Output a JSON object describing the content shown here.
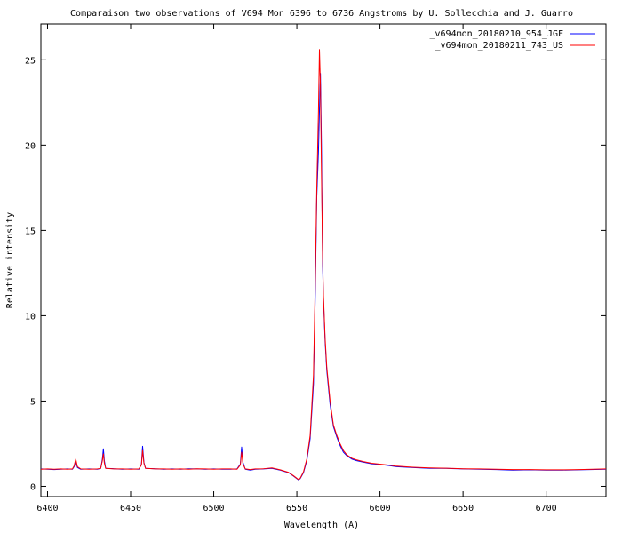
{
  "chart_data": {
    "type": "line",
    "title": "Comparaison two observations of V694 Mon 6396 to 6736 Angstroms by U. Sollecchia and J. Guarro",
    "xlabel": "Wavelength (A)",
    "ylabel": "Relative intensity",
    "xlim": [
      6396,
      6736
    ],
    "ylim": [
      -0.6,
      27.1
    ],
    "x_ticks": [
      6400,
      6450,
      6500,
      6550,
      6600,
      6650,
      6700
    ],
    "y_ticks": [
      0,
      5,
      10,
      15,
      20,
      25
    ],
    "grid": false,
    "legend_position": "top-right",
    "series": [
      {
        "name": "_v694mon_20180210_954_JGF",
        "color": "#0000ff",
        "points": [
          [
            6396,
            1.02
          ],
          [
            6400,
            1.0
          ],
          [
            6404,
            0.98
          ],
          [
            6408,
            1.0
          ],
          [
            6412,
            1.02
          ],
          [
            6415,
            1.0
          ],
          [
            6416,
            1.15
          ],
          [
            6417,
            1.45
          ],
          [
            6418,
            1.1
          ],
          [
            6420,
            1.0
          ],
          [
            6425,
            1.02
          ],
          [
            6430,
            1.0
          ],
          [
            6432,
            1.05
          ],
          [
            6433,
            1.6
          ],
          [
            6433.6,
            2.2
          ],
          [
            6434.2,
            1.5
          ],
          [
            6435,
            1.05
          ],
          [
            6440,
            1.03
          ],
          [
            6445,
            1.0
          ],
          [
            6450,
            1.02
          ],
          [
            6455,
            1.0
          ],
          [
            6456.5,
            1.3
          ],
          [
            6457.2,
            2.35
          ],
          [
            6458,
            1.4
          ],
          [
            6459,
            1.05
          ],
          [
            6465,
            1.03
          ],
          [
            6470,
            1.0
          ],
          [
            6475,
            1.02
          ],
          [
            6480,
            1.0
          ],
          [
            6485,
            1.03
          ],
          [
            6490,
            1.02
          ],
          [
            6495,
            1.0
          ],
          [
            6500,
            1.02
          ],
          [
            6505,
            1.0
          ],
          [
            6510,
            1.0
          ],
          [
            6514,
            1.02
          ],
          [
            6516,
            1.3
          ],
          [
            6516.8,
            2.3
          ],
          [
            6517.6,
            1.4
          ],
          [
            6519,
            1.0
          ],
          [
            6522,
            0.95
          ],
          [
            6525,
            1.0
          ],
          [
            6530,
            1.02
          ],
          [
            6535,
            1.05
          ],
          [
            6540,
            0.95
          ],
          [
            6545,
            0.8
          ],
          [
            6548,
            0.6
          ],
          [
            6550,
            0.45
          ],
          [
            6551,
            0.38
          ],
          [
            6552,
            0.45
          ],
          [
            6554,
            0.8
          ],
          [
            6556,
            1.5
          ],
          [
            6558,
            2.8
          ],
          [
            6560,
            6.0
          ],
          [
            6561,
            10.8
          ],
          [
            6562,
            17.0
          ],
          [
            6563,
            19.6
          ],
          [
            6563.6,
            22.0
          ],
          [
            6564.2,
            24.2
          ],
          [
            6564.8,
            20.0
          ],
          [
            6565.5,
            13.0
          ],
          [
            6566,
            11.0
          ],
          [
            6567,
            8.5
          ],
          [
            6568,
            6.8
          ],
          [
            6570,
            4.8
          ],
          [
            6572,
            3.5
          ],
          [
            6574,
            2.9
          ],
          [
            6576,
            2.4
          ],
          [
            6578,
            2.0
          ],
          [
            6580,
            1.8
          ],
          [
            6583,
            1.6
          ],
          [
            6586,
            1.5
          ],
          [
            6590,
            1.42
          ],
          [
            6595,
            1.32
          ],
          [
            6600,
            1.28
          ],
          [
            6605,
            1.22
          ],
          [
            6610,
            1.15
          ],
          [
            6620,
            1.1
          ],
          [
            6630,
            1.05
          ],
          [
            6640,
            1.05
          ],
          [
            6650,
            1.02
          ],
          [
            6660,
            1.0
          ],
          [
            6670,
            0.98
          ],
          [
            6680,
            0.95
          ],
          [
            6690,
            0.97
          ],
          [
            6700,
            0.95
          ],
          [
            6710,
            0.95
          ],
          [
            6720,
            0.97
          ],
          [
            6736,
            1.0
          ]
        ]
      },
      {
        "name": "_v694mon_20180211_743_US",
        "color": "#ff0000",
        "points": [
          [
            6396,
            1.0
          ],
          [
            6400,
            1.02
          ],
          [
            6404,
            1.0
          ],
          [
            6408,
            1.02
          ],
          [
            6412,
            1.0
          ],
          [
            6415,
            1.02
          ],
          [
            6416,
            1.2
          ],
          [
            6417,
            1.6
          ],
          [
            6418,
            1.15
          ],
          [
            6420,
            1.02
          ],
          [
            6425,
            1.0
          ],
          [
            6430,
            1.02
          ],
          [
            6432,
            1.05
          ],
          [
            6433,
            1.5
          ],
          [
            6433.6,
            1.9
          ],
          [
            6434.2,
            1.35
          ],
          [
            6435,
            1.05
          ],
          [
            6440,
            1.02
          ],
          [
            6445,
            1.02
          ],
          [
            6450,
            1.0
          ],
          [
            6455,
            1.02
          ],
          [
            6456.5,
            1.25
          ],
          [
            6457.2,
            2.1
          ],
          [
            6458,
            1.35
          ],
          [
            6459,
            1.05
          ],
          [
            6465,
            1.02
          ],
          [
            6470,
            1.02
          ],
          [
            6475,
            1.0
          ],
          [
            6480,
            1.02
          ],
          [
            6485,
            1.0
          ],
          [
            6490,
            1.03
          ],
          [
            6495,
            1.02
          ],
          [
            6500,
            1.0
          ],
          [
            6505,
            1.02
          ],
          [
            6510,
            1.02
          ],
          [
            6514,
            1.0
          ],
          [
            6516,
            1.25
          ],
          [
            6516.8,
            2.0
          ],
          [
            6517.6,
            1.3
          ],
          [
            6519,
            1.02
          ],
          [
            6522,
            0.98
          ],
          [
            6525,
            1.02
          ],
          [
            6530,
            1.03
          ],
          [
            6535,
            1.08
          ],
          [
            6540,
            0.97
          ],
          [
            6545,
            0.82
          ],
          [
            6548,
            0.62
          ],
          [
            6550,
            0.47
          ],
          [
            6551,
            0.4
          ],
          [
            6552,
            0.47
          ],
          [
            6554,
            0.85
          ],
          [
            6556,
            1.6
          ],
          [
            6558,
            3.0
          ],
          [
            6560,
            6.5
          ],
          [
            6561,
            11.5
          ],
          [
            6562,
            17.5
          ],
          [
            6563,
            22.0
          ],
          [
            6563.6,
            25.6
          ],
          [
            6564.2,
            23.5
          ],
          [
            6564.8,
            18.5
          ],
          [
            6565.5,
            13.5
          ],
          [
            6566,
            11.2
          ],
          [
            6567,
            8.7
          ],
          [
            6568,
            7.0
          ],
          [
            6570,
            5.0
          ],
          [
            6572,
            3.6
          ],
          [
            6574,
            3.0
          ],
          [
            6576,
            2.5
          ],
          [
            6578,
            2.1
          ],
          [
            6580,
            1.85
          ],
          [
            6583,
            1.65
          ],
          [
            6586,
            1.55
          ],
          [
            6590,
            1.45
          ],
          [
            6595,
            1.35
          ],
          [
            6600,
            1.3
          ],
          [
            6605,
            1.25
          ],
          [
            6610,
            1.18
          ],
          [
            6620,
            1.12
          ],
          [
            6630,
            1.08
          ],
          [
            6640,
            1.06
          ],
          [
            6650,
            1.03
          ],
          [
            6660,
            1.02
          ],
          [
            6670,
            1.0
          ],
          [
            6680,
            0.98
          ],
          [
            6690,
            0.98
          ],
          [
            6700,
            0.97
          ],
          [
            6710,
            0.97
          ],
          [
            6720,
            0.98
          ],
          [
            6736,
            1.02
          ]
        ]
      }
    ]
  }
}
